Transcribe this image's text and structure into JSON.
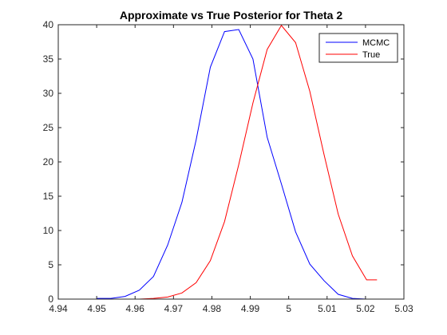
{
  "chart_data": {
    "type": "line",
    "title": "Approximate vs True Posterior for Theta 2",
    "xlabel": "",
    "ylabel": "",
    "xlim": [
      4.94,
      5.03
    ],
    "ylim": [
      0,
      40
    ],
    "xticks": [
      "4.94",
      "4.95",
      "4.96",
      "4.97",
      "4.98",
      "4.99",
      "5",
      "5.01",
      "5.02",
      "5.03"
    ],
    "yticks": [
      "0",
      "5",
      "10",
      "15",
      "20",
      "25",
      "30",
      "35",
      "40"
    ],
    "grid": false,
    "legend_position": "top-right",
    "series": [
      {
        "name": "MCMC",
        "color": "#0000ff",
        "x": [
          4.95,
          4.9537,
          4.9574,
          4.9611,
          4.9648,
          4.9685,
          4.9722,
          4.9759,
          4.9796,
          4.9833,
          4.987,
          4.9907,
          4.9944,
          4.9981,
          5.0018,
          5.0055,
          5.0092,
          5.0129,
          5.0166,
          5.0203
        ],
        "y": [
          0.1,
          0.1,
          0.4,
          1.3,
          3.3,
          7.9,
          14.1,
          23.2,
          33.8,
          39.0,
          39.3,
          35.0,
          23.6,
          16.8,
          9.8,
          5.1,
          2.7,
          0.7,
          0.1,
          0.0
        ]
      },
      {
        "name": "True",
        "color": "#ff0000",
        "x": [
          4.95,
          4.9537,
          4.9574,
          4.9611,
          4.9648,
          4.9685,
          4.9722,
          4.9759,
          4.9796,
          4.9833,
          4.987,
          4.9907,
          4.9944,
          4.9981,
          5.0018,
          5.0055,
          5.0092,
          5.0129,
          5.0166,
          5.0203,
          5.023
        ],
        "y": [
          0.0,
          0.0,
          0.0,
          0.0,
          0.1,
          0.3,
          0.9,
          2.4,
          5.6,
          11.3,
          19.6,
          28.6,
          36.4,
          39.9,
          37.4,
          30.3,
          21.1,
          12.4,
          6.3,
          2.8,
          2.8
        ]
      }
    ]
  }
}
